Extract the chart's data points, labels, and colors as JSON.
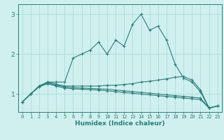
{
  "background_color": "#cff0ee",
  "grid_color": "#aadddd",
  "line_color": "#2a7d7b",
  "xlabel": "Humidex (Indice chaleur)",
  "xlim": [
    -0.5,
    23.5
  ],
  "ylim": [
    0.55,
    3.25
  ],
  "yticks": [
    1,
    2,
    3
  ],
  "xticks": [
    0,
    1,
    2,
    3,
    4,
    5,
    6,
    7,
    8,
    9,
    10,
    11,
    12,
    13,
    14,
    15,
    16,
    17,
    18,
    19,
    20,
    21,
    22,
    23
  ],
  "series": [
    {
      "x": [
        0,
        1,
        2,
        3,
        4,
        5,
        6,
        7,
        8,
        9,
        10,
        11,
        12,
        13,
        14,
        15,
        16,
        17,
        18,
        19,
        20,
        21,
        22,
        23
      ],
      "y": [
        0.8,
        1.0,
        1.2,
        1.3,
        1.3,
        1.3,
        1.9,
        2.0,
        2.1,
        2.3,
        2.0,
        2.35,
        2.2,
        2.75,
        3.0,
        2.6,
        2.7,
        2.35,
        1.75,
        1.4,
        1.3,
        1.05,
        0.65,
        0.7
      ]
    },
    {
      "x": [
        0,
        1,
        2,
        3,
        4,
        5,
        6,
        7,
        8,
        9,
        10,
        11,
        12,
        13,
        14,
        15,
        16,
        17,
        18,
        19,
        20,
        21,
        22,
        23
      ],
      "y": [
        0.8,
        1.0,
        1.2,
        1.3,
        1.25,
        1.2,
        1.2,
        1.2,
        1.2,
        1.2,
        1.22,
        1.22,
        1.24,
        1.26,
        1.3,
        1.32,
        1.35,
        1.38,
        1.42,
        1.44,
        1.35,
        1.1,
        0.65,
        0.7
      ]
    },
    {
      "x": [
        0,
        1,
        2,
        3,
        4,
        5,
        6,
        7,
        8,
        9,
        10,
        11,
        12,
        13,
        14,
        15,
        16,
        17,
        18,
        19,
        20,
        21,
        22,
        23
      ],
      "y": [
        0.8,
        1.0,
        1.2,
        1.28,
        1.22,
        1.18,
        1.16,
        1.15,
        1.14,
        1.13,
        1.12,
        1.1,
        1.08,
        1.06,
        1.04,
        1.02,
        1.0,
        0.98,
        0.96,
        0.94,
        0.92,
        0.9,
        0.65,
        0.7
      ]
    },
    {
      "x": [
        0,
        1,
        2,
        3,
        4,
        5,
        6,
        7,
        8,
        9,
        10,
        11,
        12,
        13,
        14,
        15,
        16,
        17,
        18,
        19,
        20,
        21,
        22,
        23
      ],
      "y": [
        0.8,
        1.0,
        1.18,
        1.26,
        1.2,
        1.15,
        1.13,
        1.12,
        1.11,
        1.1,
        1.08,
        1.06,
        1.04,
        1.02,
        1.0,
        0.98,
        0.96,
        0.94,
        0.92,
        0.9,
        0.88,
        0.86,
        0.65,
        0.7
      ]
    }
  ]
}
